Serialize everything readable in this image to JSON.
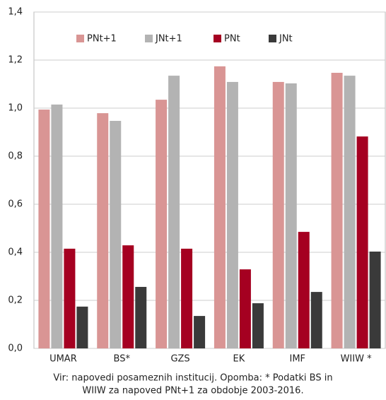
{
  "chart_data": {
    "type": "bar",
    "categories": [
      "UMAR",
      "BS*",
      "GZS",
      "EK",
      "IMF",
      "WIIW *"
    ],
    "series": [
      {
        "name": "PNt+1",
        "color": "#d99594",
        "values": [
          0.994,
          0.979,
          1.035,
          1.174,
          1.109,
          1.147
        ]
      },
      {
        "name": "JNt+1",
        "color": "#b3b3b3",
        "values": [
          1.015,
          0.947,
          1.135,
          1.109,
          1.103,
          1.135
        ]
      },
      {
        "name": "PNt",
        "color": "#a50021",
        "values": [
          0.415,
          0.429,
          0.415,
          0.329,
          0.485,
          0.882
        ]
      },
      {
        "name": "JNt",
        "color": "#3a3a3a",
        "values": [
          0.174,
          0.256,
          0.135,
          0.188,
          0.235,
          0.403
        ]
      }
    ],
    "ylim": [
      0,
      1.4
    ],
    "yticks": [
      {
        "value": 0,
        "label": "0,0"
      },
      {
        "value": 0.2,
        "label": "0,2"
      },
      {
        "value": 0.4,
        "label": "0,4"
      },
      {
        "value": 0.6,
        "label": "0,6"
      },
      {
        "value": 0.8,
        "label": "0,8"
      },
      {
        "value": 1.0,
        "label": "1,0"
      },
      {
        "value": 1.2,
        "label": "1,2"
      },
      {
        "value": 1.4,
        "label": "1,4"
      }
    ],
    "grid": true,
    "note": [
      "Vir: napovedi posameznih institucij. Opomba: * Podatki BS in",
      "WIIW za napoved PNt+1 za obdobje 2003-2016."
    ]
  }
}
